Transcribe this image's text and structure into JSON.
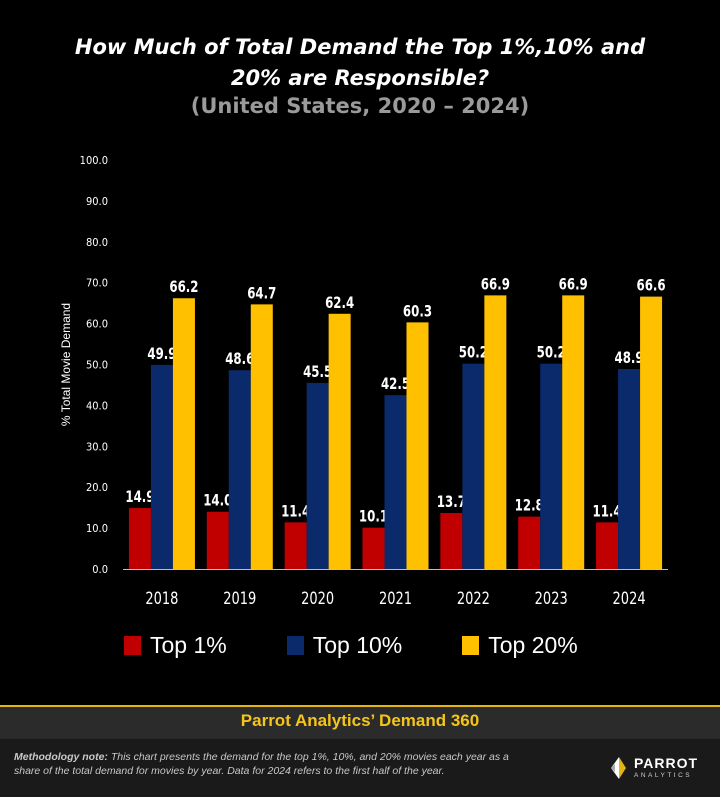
{
  "title_line1": "How Much of Total Demand the Top 1%,10% and",
  "title_line2": "20% are Responsible?",
  "subtitle": "(United States, 2020 – 2024)",
  "chart_data": {
    "type": "bar",
    "title": "How Much of Total Demand the Top 1%,10% and 20% are Responsible?",
    "subtitle": "(United States, 2020 – 2024)",
    "xlabel": "",
    "ylabel": "% Total Movie Demand",
    "ylim": [
      0,
      100
    ],
    "yticks": [
      "0.0",
      "10.0",
      "20.0",
      "30.0",
      "40.0",
      "50.0",
      "60.0",
      "70.0",
      "80.0",
      "90.0",
      "100.0"
    ],
    "grid": false,
    "legend_position": "bottom",
    "categories": [
      "2018",
      "2019",
      "2020",
      "2021",
      "2022",
      "2023",
      "2024"
    ],
    "series": [
      {
        "name": "Top 1%",
        "color": "#c00000",
        "values": [
          14.9,
          14.0,
          11.4,
          10.1,
          13.7,
          12.8,
          11.4
        ],
        "labels": [
          "14.9",
          "14.0",
          "11.4",
          "10.1",
          "13.7",
          "12.8",
          "11.4"
        ]
      },
      {
        "name": "Top 10%",
        "color": "#0a2a6b",
        "values": [
          49.9,
          48.6,
          45.5,
          42.5,
          50.2,
          50.2,
          48.9
        ],
        "labels": [
          "49.9",
          "48.6",
          "45.5",
          "42.5",
          "50.2",
          "50.2",
          "48.9"
        ]
      },
      {
        "name": "Top 20%",
        "color": "#ffc000",
        "values": [
          66.2,
          64.7,
          62.4,
          60.3,
          66.9,
          66.9,
          66.6
        ],
        "labels": [
          "66.2",
          "64.7",
          "62.4",
          "60.3",
          "66.9",
          "66.9",
          "66.6"
        ]
      }
    ]
  },
  "legend": [
    {
      "label": "Top 1%",
      "color": "#c00000"
    },
    {
      "label": "Top 10%",
      "color": "#0a2a6b"
    },
    {
      "label": "Top 20%",
      "color": "#ffc000"
    }
  ],
  "banner": {
    "text": "Parrot Analytics’ Demand 360",
    "color": "#f5c518"
  },
  "note": {
    "label": "Methodology note:",
    "text": " This chart presents the demand for the top 1%, 10%, and 20% movies each year as a share of the total demand for movies by year. Data for 2024 refers to the first half of the year."
  },
  "logo": {
    "name": "PARROT",
    "sub": "ANALYTICS"
  }
}
